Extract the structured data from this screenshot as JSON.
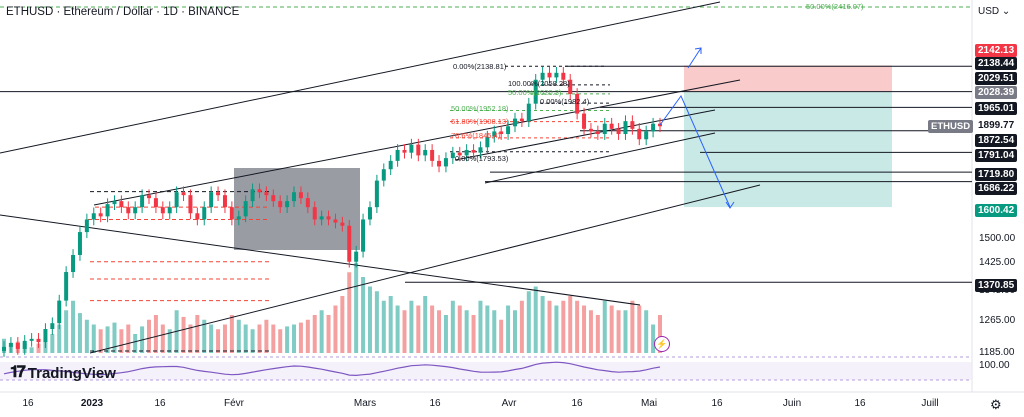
{
  "header": {
    "title": "ETHUSD · Ethereum / Dollar · 1D · BINANCE",
    "currency": "USD"
  },
  "logo": {
    "text": "TradingView",
    "icon": "tradingview-logo-icon"
  },
  "y_axis": {
    "ticks": [
      "1500.00",
      "1425.00",
      "1345.00",
      "1265.00",
      "1185.00"
    ],
    "rsi_tick": "100.00"
  },
  "price_tags": [
    {
      "label": "2142.13",
      "bg": "#f23645",
      "fg": "#ffffff",
      "price": 2142.13
    },
    {
      "label": "2138.44",
      "bg": "#131722",
      "fg": "#ffffff",
      "price": 2138.44
    },
    {
      "label": "2029.51",
      "bg": "#131722",
      "fg": "#ffffff",
      "price": 2029.51
    },
    {
      "label": "2028.39",
      "bg": "#787b86",
      "fg": "#ffffff",
      "price": 2028.39
    },
    {
      "label": "1965.01",
      "bg": "#131722",
      "fg": "#ffffff",
      "price": 1965.01
    },
    {
      "label": "1899.77",
      "bg": "#ffffff",
      "fg": "#131722",
      "price": 1899.77
    },
    {
      "label": "1872.54",
      "bg": "#131722",
      "fg": "#ffffff",
      "price": 1872.54
    },
    {
      "label": "1791.04",
      "bg": "#131722",
      "fg": "#ffffff",
      "price": 1791.04
    },
    {
      "label": "1719.80",
      "bg": "#131722",
      "fg": "#ffffff",
      "price": 1719.8
    },
    {
      "label": "1686.22",
      "bg": "#131722",
      "fg": "#ffffff",
      "price": 1686.22
    },
    {
      "label": "1600.42",
      "bg": "#089981",
      "fg": "#ffffff",
      "price": 1600.42
    },
    {
      "label": "1370.85",
      "bg": "#131722",
      "fg": "#ffffff",
      "price": 1370.85
    }
  ],
  "symbol_tag": "ETHUSD",
  "fib_labels": [
    {
      "text": "50.00%(2416.07)",
      "color": "#4caf50"
    },
    {
      "text": "0.00%(2138.81)",
      "color": "#131722"
    },
    {
      "text": "100.00%(2058.28)",
      "color": "#131722"
    },
    {
      "text": "50.00%(2020.3)",
      "color": "#4caf50"
    },
    {
      "text": "0.00%(1982.4)",
      "color": "#131722"
    },
    {
      "text": "50.00%(1952.18)",
      "color": "#4caf50"
    },
    {
      "text": "61.80%(1908.13)",
      "color": "#f44336"
    },
    {
      "text": "78.6%(1845.4)",
      "color": "#f44336"
    },
    {
      "text": "0.00%(1793.53)",
      "color": "#131722"
    }
  ],
  "x_axis": {
    "labels": [
      "16",
      "2023",
      "16",
      "Févr",
      "Mars",
      "16",
      "Avr",
      "16",
      "Mai",
      "16",
      "Juin",
      "16",
      "Juill"
    ]
  },
  "icons": {
    "settings": "gear-icon",
    "alert": "lightning-icon"
  },
  "chart_data": {
    "type": "candlestick",
    "symbol": "ETHUSD",
    "exchange": "BINANCE",
    "interval": "1D",
    "ylim": [
      1150,
      2440
    ],
    "price_levels": [
      2142.13,
      2138.44,
      2029.51,
      2028.39,
      1965.01,
      1899.77,
      1872.54,
      1791.04,
      1719.8,
      1686.22,
      1600.42,
      1370.85
    ],
    "ohlc_close_path": [
      1200,
      1210,
      1195,
      1215,
      1220,
      1212,
      1245,
      1260,
      1320,
      1400,
      1450,
      1520,
      1560,
      1580,
      1570,
      1610,
      1620,
      1600,
      1580,
      1600,
      1640,
      1630,
      1600,
      1580,
      1600,
      1650,
      1640,
      1580,
      1560,
      1600,
      1650,
      1640,
      1600,
      1560,
      1570,
      1620,
      1660,
      1650,
      1640,
      1620,
      1600,
      1620,
      1650,
      1630,
      1600,
      1560,
      1570,
      1560,
      1550,
      1540,
      1430,
      1460,
      1560,
      1600,
      1690,
      1730,
      1760,
      1800,
      1790,
      1820,
      1780,
      1800,
      1760,
      1740,
      1770,
      1790,
      1780,
      1800,
      1790,
      1810,
      1850,
      1870,
      1860,
      1890,
      1920,
      1910,
      1980,
      2080,
      2110,
      2090,
      2110,
      2080,
      2020,
      1940,
      1880,
      1870,
      1860,
      1900,
      1880,
      1860,
      1910,
      1880,
      1840,
      1870,
      1900,
      1890
    ],
    "volume_relative": [
      0.15,
      0.08,
      0.12,
      0.1,
      0.06,
      0.1,
      0.12,
      0.2,
      0.3,
      0.45,
      0.55,
      0.42,
      0.35,
      0.3,
      0.25,
      0.28,
      0.32,
      0.25,
      0.3,
      0.2,
      0.28,
      0.35,
      0.4,
      0.3,
      0.25,
      0.45,
      0.38,
      0.3,
      0.4,
      0.35,
      0.3,
      0.25,
      0.3,
      0.4,
      0.35,
      0.3,
      0.25,
      0.3,
      0.35,
      0.3,
      0.25,
      0.28,
      0.3,
      0.32,
      0.35,
      0.4,
      0.45,
      0.4,
      0.5,
      0.6,
      0.85,
      0.95,
      0.8,
      0.7,
      0.65,
      0.55,
      0.6,
      0.5,
      0.45,
      0.55,
      0.5,
      0.6,
      0.5,
      0.45,
      0.4,
      0.55,
      0.5,
      0.45,
      0.4,
      0.55,
      0.5,
      0.45,
      0.35,
      0.5,
      0.45,
      0.55,
      0.65,
      0.7,
      0.6,
      0.55,
      0.5,
      0.55,
      0.6,
      0.55,
      0.5,
      0.45,
      0.4,
      0.55,
      0.5,
      0.45,
      0.45,
      0.55,
      0.5,
      0.45,
      0.3,
      0.4
    ]
  }
}
